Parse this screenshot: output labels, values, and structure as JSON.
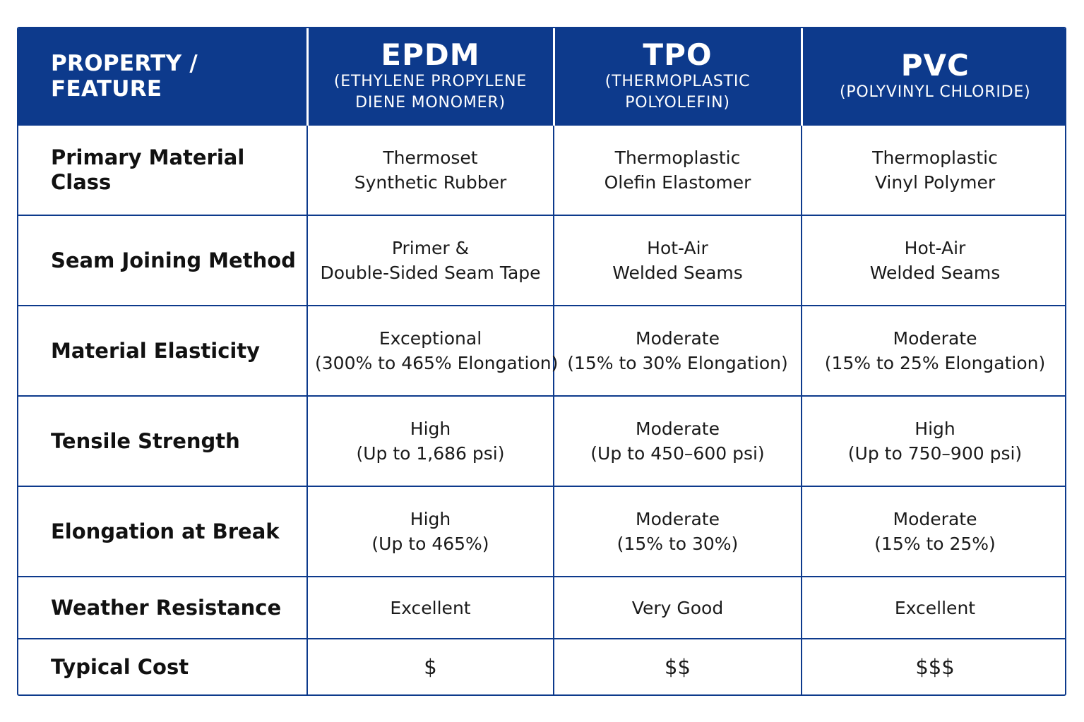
{
  "header": {
    "property_label": "PROPERTY / FEATURE",
    "columns": [
      {
        "abbr": "EPDM",
        "full_line1": "(ETHYLENE PROPYLENE",
        "full_line2": "DIENE MONOMER)"
      },
      {
        "abbr": "TPO",
        "full_line1": "(THERMOPLASTIC",
        "full_line2": "POLYOLEFIN)"
      },
      {
        "abbr": "PVC",
        "full_line1": "(POLYVINYL CHLORIDE)",
        "full_line2": ""
      }
    ]
  },
  "rows": [
    {
      "label": "Primary Material Class",
      "cells": [
        [
          "Thermoset",
          "Synthetic Rubber"
        ],
        [
          "Thermoplastic",
          "Olefin Elastomer"
        ],
        [
          "Thermoplastic",
          "Vinyl Polymer"
        ]
      ]
    },
    {
      "label": "Seam Joining Method",
      "cells": [
        [
          "Primer &",
          "Double-Sided Seam Tape"
        ],
        [
          "Hot-Air",
          "Welded Seams"
        ],
        [
          "Hot-Air",
          "Welded Seams"
        ]
      ]
    },
    {
      "label": "Material Elasticity",
      "cells": [
        [
          "Exceptional",
          "(300% to 465% Elongation)"
        ],
        [
          "Moderate",
          "(15% to 30% Elongation)"
        ],
        [
          "Moderate",
          "(15% to 25% Elongation)"
        ]
      ]
    },
    {
      "label": "Tensile Strength",
      "cells": [
        [
          "High",
          "(Up to 1,686 psi)"
        ],
        [
          "Moderate",
          "(Up to 450–600 psi)"
        ],
        [
          "High",
          "(Up to 750–900 psi)"
        ]
      ]
    },
    {
      "label": "Elongation at Break",
      "cells": [
        [
          "High",
          "(Up to 465%)"
        ],
        [
          "Moderate",
          "(15% to 30%)"
        ],
        [
          "Moderate",
          "(15% to 25%)"
        ]
      ]
    },
    {
      "label": "Weather Resistance",
      "cells": [
        [
          "Excellent"
        ],
        [
          "Very Good"
        ],
        [
          "Excellent"
        ]
      ]
    },
    {
      "label": "Typical Cost",
      "cells": [
        [
          "$"
        ],
        [
          "$$"
        ],
        [
          "$$$"
        ]
      ]
    }
  ],
  "colors": {
    "header_bg": "#0d3a8c",
    "grid": "#0d3a8c",
    "text": "#1a1a1a"
  }
}
